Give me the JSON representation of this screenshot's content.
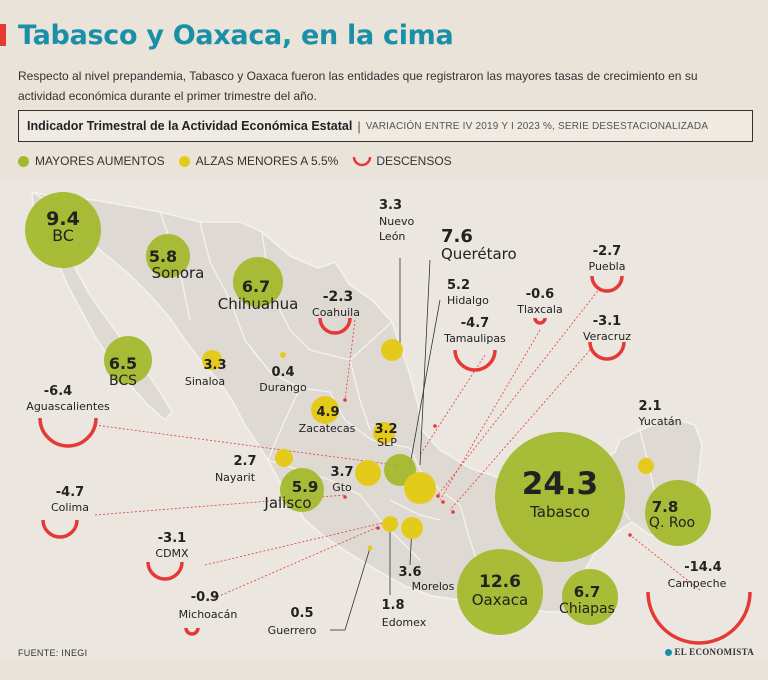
{
  "header": {
    "title": "Tabasco y Oaxaca, en la cima",
    "subtitle": "Respecto al nivel prepandemia, Tabasco y Oaxaca fueron las entidades que registraron las mayores tasas de crecimiento en su actividad económica durante el primer trimestre del año.",
    "indicator_title": "Indicador Trimestral de la Actividad Económica Estatal",
    "indicator_separator": "|",
    "indicator_subtitle": "VARIACIÓN ENTRE IV 2019 Y I 2023 %, SERIE DESESTACIONALIZADA"
  },
  "legend": {
    "high": "MAYORES AUMENTOS",
    "low": "ALZAS MENORES A 5.5%",
    "down": "DESCENSOS"
  },
  "colors": {
    "high": "#a3b92d",
    "low": "#e4cb1b",
    "down": "#e53935",
    "title": "#1a8fa8",
    "land": "#dedad3",
    "border": "#f4f2ee"
  },
  "states": {
    "bc": {
      "value": "9.4",
      "name": "BC"
    },
    "sonora": {
      "value": "5.8",
      "name": "Sonora"
    },
    "chihuahua": {
      "value": "6.7",
      "name": "Chihuahua"
    },
    "coahuila": {
      "value": "-2.3",
      "name": "Coahuila"
    },
    "nuevo_leon": {
      "value": "3.3",
      "name1": "Nuevo",
      "name2": "León"
    },
    "queretaro": {
      "value": "7.6",
      "name": "Querétaro"
    },
    "puebla": {
      "value": "-2.7",
      "name": "Puebla"
    },
    "hidalgo": {
      "value": "5.2",
      "name": "Hidalgo"
    },
    "tlaxcala": {
      "value": "-0.6",
      "name": "Tlaxcala"
    },
    "tamaulipas": {
      "value": "-4.7",
      "name": "Tamaulipas"
    },
    "veracruz": {
      "value": "-3.1",
      "name": "Veracruz"
    },
    "bcs": {
      "value": "6.5",
      "name": "BCS"
    },
    "sinaloa": {
      "value": "3.3",
      "name": "Sinaloa"
    },
    "durango": {
      "value": "0.4",
      "name": "Durango"
    },
    "aguascalientes": {
      "value": "-6.4",
      "name": "Aguascalientes"
    },
    "zacatecas": {
      "value": "4.9",
      "name": "Zacatecas"
    },
    "slp": {
      "value": "3.2",
      "name": "SLP"
    },
    "yucatan": {
      "value": "2.1",
      "name": "Yucatán"
    },
    "nayarit": {
      "value": "2.7",
      "name": "Nayarit"
    },
    "gto": {
      "value": "3.7",
      "name": "Gto"
    },
    "jalisco": {
      "value": "5.9",
      "name": "Jalisco"
    },
    "tabasco": {
      "value": "24.3",
      "name": "Tabasco"
    },
    "qroo": {
      "value": "7.8",
      "name": "Q. Roo"
    },
    "colima": {
      "value": "-4.7",
      "name": "Colima"
    },
    "cdmx": {
      "value": "-3.1",
      "name": "CDMX"
    },
    "morelos": {
      "value": "3.6",
      "name": "Morelos"
    },
    "oaxaca": {
      "value": "12.6",
      "name": "Oaxaca"
    },
    "chiapas": {
      "value": "6.7",
      "name": "Chiapas"
    },
    "campeche": {
      "value": "-14.4",
      "name": "Campeche"
    },
    "michoacan": {
      "value": "-0.9",
      "name": "Michoacán"
    },
    "guerrero": {
      "value": "0.5",
      "name": "Guerrero"
    },
    "edomex": {
      "value": "1.8",
      "name": "Edomex"
    }
  },
  "footer": {
    "source": "FUENTE: INEGI",
    "brand": "EL ECONOMISTA"
  }
}
